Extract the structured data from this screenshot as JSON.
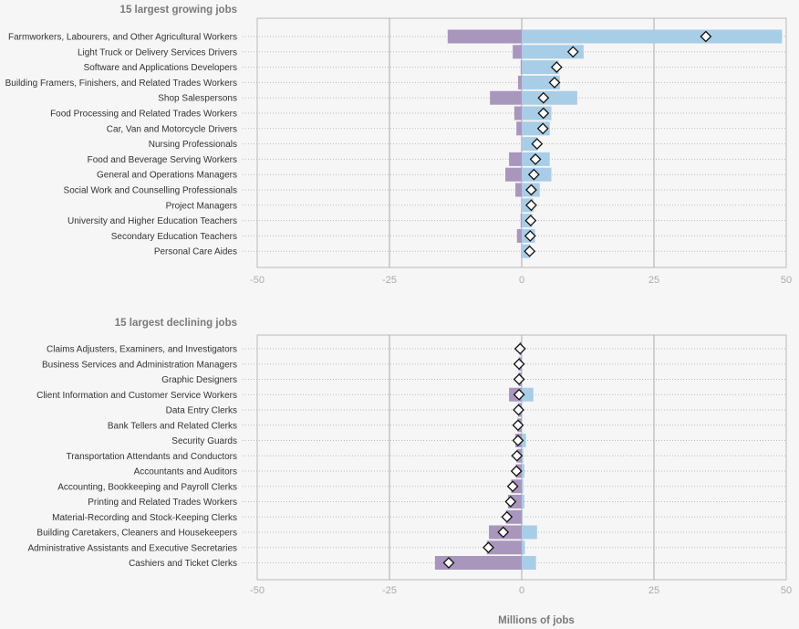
{
  "chart_data": [
    {
      "type": "bar",
      "title": "15 largest growing jobs",
      "xlabel": "Millions of jobs",
      "xlim": [
        -50,
        50
      ],
      "xticks": [
        "-50",
        "-25",
        "0",
        "25",
        "50"
      ],
      "grid": "vertical lines at ticks, dotted row guides",
      "legend": "none",
      "colors": {
        "negative": "#a996bd",
        "positive": "#a8cde6",
        "net_marker": "#ffffff"
      },
      "categories": [
        "Farmworkers, Labourers, and Other Agricultural Workers",
        "Light Truck or Delivery Services Drivers",
        "Software and Applications Developers",
        "Building Framers, Finishers, and Related Trades Workers",
        "Shop Salespersons",
        "Food Processing and Related Trades Workers",
        "Car, Van and Motorcycle Drivers",
        "Nursing Professionals",
        "Food and Beverage Serving Workers",
        "General and Operations Managers",
        "Social Work and Counselling Professionals",
        "Project Managers",
        "University and Higher Education Teachers",
        "Secondary Education Teachers",
        "Personal Care Aides"
      ],
      "series": [
        {
          "values": [
            -14.0,
            -1.7,
            -0.2,
            -0.7,
            -6.0,
            -1.4,
            -1.0,
            -0.1,
            -2.4,
            -3.1,
            -1.2,
            -0.1,
            -0.2,
            -0.9,
            -0.1
          ]
        },
        {
          "values": [
            49.2,
            11.7,
            7.0,
            7.2,
            10.5,
            5.6,
            5.3,
            3.0,
            5.3,
            5.6,
            3.4,
            2.2,
            2.0,
            2.5,
            1.6
          ]
        },
        {
          "values": [
            34.8,
            9.7,
            6.6,
            6.2,
            4.1,
            4.1,
            4.0,
            2.9,
            2.6,
            2.3,
            1.8,
            1.8,
            1.7,
            1.6,
            1.5
          ]
        }
      ]
    },
    {
      "type": "bar",
      "title": "15 largest declining jobs",
      "xlabel": "Millions of jobs",
      "xlim": [
        -50,
        50
      ],
      "xticks": [
        "-50",
        "-25",
        "0",
        "25",
        "50"
      ],
      "grid": "vertical lines at ticks, dotted row guides",
      "legend": "none",
      "colors": {
        "negative": "#a996bd",
        "positive": "#a8cde6",
        "net_marker": "#ffffff"
      },
      "categories": [
        "Claims Adjusters, Examiners, and Investigators",
        "Business Services and Administration Managers",
        "Graphic Designers",
        "Client Information and Customer Service Workers",
        "Data Entry Clerks",
        "Bank Tellers and Related Clerks",
        "Security Guards",
        "Transportation Attendants and Conductors",
        "Accountants and Auditors",
        "Accounting,  Bookkeeping and Payroll Clerks",
        "Printing and Related Trades Workers",
        "Material-Recording and Stock-Keeping Clerks",
        "Building Caretakers, Cleaners and Housekeepers",
        "Administrative Assistants and Executive Secretaries",
        "Cashiers and Ticket Clerks"
      ],
      "series": [
        {
          "values": [
            -0.4,
            -0.6,
            -0.6,
            -2.4,
            -0.7,
            -0.8,
            -1.2,
            -0.9,
            -1.1,
            -2.0,
            -2.6,
            -3.0,
            -6.2,
            -6.6,
            -16.4
          ]
        },
        {
          "values": [
            0.1,
            0.1,
            0.1,
            2.2,
            0.1,
            0.1,
            0.8,
            0.3,
            0.5,
            0.3,
            0.5,
            0.2,
            2.9,
            0.6,
            2.7
          ]
        },
        {
          "values": [
            -0.3,
            -0.5,
            -0.5,
            -0.5,
            -0.6,
            -0.7,
            -0.7,
            -0.9,
            -1.0,
            -1.7,
            -2.1,
            -2.8,
            -3.5,
            -6.3,
            -13.8
          ]
        }
      ]
    }
  ]
}
